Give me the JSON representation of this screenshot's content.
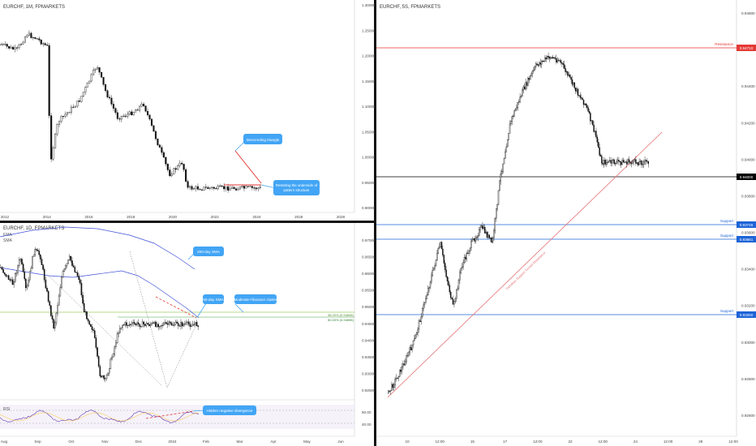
{
  "panels": {
    "monthly": {
      "symbol_label": "EURCHF, 1M, FPMARKETS",
      "price_ticks": [
        "1.30000",
        "1.25000",
        "1.20000",
        "1.15000",
        "1.10000",
        "1.05000",
        "1.00000",
        "0.95000",
        "0.90000"
      ],
      "time_ticks": [
        "2012",
        "2014",
        "2016",
        "2018",
        "2020",
        "2022",
        "2024",
        "2026",
        "2028"
      ],
      "callouts": [
        "Descending triangle",
        "Retesting the underside of pattern structure"
      ]
    },
    "daily": {
      "symbol_label": "EURCHF, 1D, FPMARKETS",
      "ma_labels": [
        "EMA",
        "SMA"
      ],
      "price_ticks": [
        "0.97000",
        "0.96500",
        "0.96000",
        "0.95500",
        "0.95000",
        "0.94500",
        "0.94000",
        "0.93500",
        "0.93000",
        "0.92500"
      ],
      "fib_labels": [
        "38.20% (0.94838)",
        "50.00% (0.94698)"
      ],
      "callouts": [
        "200-day SMA",
        "50-day SMA",
        "Moderate Fibonacci cluster"
      ],
      "rsi": {
        "label": "RSI",
        "ticks": [
          "60.00",
          "40.00"
        ],
        "callout": "Hidden negative divergence"
      },
      "time_ticks": [
        "Aug",
        "Sep",
        "Oct",
        "Nov",
        "Dec",
        "2024",
        "Feb",
        "Mar",
        "Apr",
        "May",
        "Jun"
      ]
    },
    "five_min": {
      "symbol_label": "EURCHF, 5S, FPMARKETS",
      "price_ticks": [
        "0.94800",
        "0.94600",
        "0.94400",
        "0.94200",
        "0.94000",
        "0.93800",
        "0.93600",
        "0.93400",
        "0.93200",
        "0.93000",
        "0.92800",
        "0.92600"
      ],
      "time_ticks": [
        "10",
        "12:00",
        "15",
        "17",
        "12:00",
        "22",
        "12:00",
        "24",
        "12:00",
        "29",
        "12:00"
      ],
      "levels": [
        {
          "label": "Resistance",
          "price": "0.94710",
          "color": "#e53935"
        },
        {
          "label": "",
          "price": "0.94000",
          "color": "#000000"
        },
        {
          "label": "Support",
          "price": "0.93746",
          "color": "#1e64d8"
        },
        {
          "label": "Support",
          "price": "0.93661",
          "color": "#1e64d8"
        },
        {
          "label": "Support",
          "price": "0.93250",
          "color": "#1e64d8"
        }
      ],
      "trendline_label": "Trendline Support Turned Resistance"
    }
  },
  "chart_data": [
    {
      "type": "candlestick",
      "title": "EURCHF, 1M, FPMARKETS",
      "x_range": [
        "2012",
        "2028"
      ],
      "ylim": [
        0.88,
        1.31
      ],
      "annotations": [
        "Descending triangle",
        "Retesting the underside of pattern structure"
      ]
    },
    {
      "type": "candlestick",
      "title": "EURCHF, 1D, FPMARKETS",
      "x_range": [
        "Aug",
        "Jun"
      ],
      "ylim": [
        0.922,
        0.974
      ],
      "fibonacci": [
        {
          "level": "38.20%",
          "price": 0.94838
        },
        {
          "level": "50.00%",
          "price": 0.94698
        }
      ],
      "annotations": [
        "200-day SMA",
        "50-day SMA",
        "Moderate Fibonacci cluster",
        "Hidden negative divergence"
      ],
      "rsi_ticks": [
        60,
        40
      ]
    },
    {
      "type": "candlestick",
      "title": "EURCHF, 5S, FPMARKETS",
      "ylim": [
        0.9255,
        0.9505
      ],
      "horizontal_levels": [
        0.9471,
        0.94,
        0.93746,
        0.93661,
        0.9325
      ],
      "annotations": [
        "Resistance",
        "Support",
        "Support",
        "Support",
        "Trendline Support Turned Resistance"
      ]
    }
  ],
  "colors": {
    "up": "#2f2f2f",
    "down": "#000000",
    "resistance": "#e53935",
    "support": "#1e64d8",
    "callout": "#42a5f5",
    "sma200": "#3f51d8",
    "sma50": "#3f51d8",
    "fib": "#9ccc65"
  }
}
